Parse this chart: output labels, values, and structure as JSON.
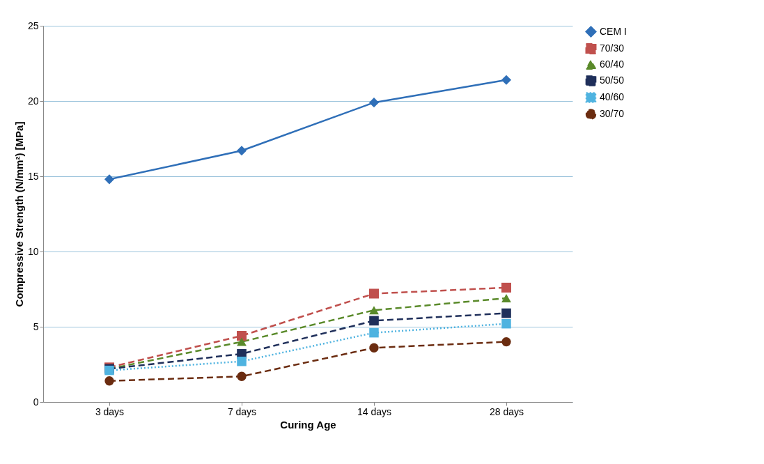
{
  "chart_data": {
    "type": "line",
    "xlabel": "Curing Age",
    "ylabel": "Compressive Strength (N/mm²) [MPa]",
    "categories": [
      "3 days",
      "7 days",
      "14 days",
      "28 days"
    ],
    "series": [
      {
        "name": "CEM I",
        "color": "#2f6fb8",
        "marker": "diamond",
        "line_style": "solid",
        "values": [
          14.8,
          16.7,
          19.9,
          21.4
        ]
      },
      {
        "name": "70/30",
        "color": "#c0504d",
        "marker": "square",
        "line_style": "dashed",
        "values": [
          2.3,
          4.4,
          7.2,
          7.6
        ]
      },
      {
        "name": "60/40",
        "color": "#5a8a2a",
        "marker": "triangle",
        "line_style": "dashed",
        "values": [
          2.2,
          4.0,
          6.1,
          6.9
        ]
      },
      {
        "name": "50/50",
        "color": "#1f2f5a",
        "marker": "square",
        "line_style": "dashed",
        "values": [
          2.2,
          3.2,
          5.4,
          5.9
        ]
      },
      {
        "name": "40/60",
        "color": "#4fb3e0",
        "marker": "square",
        "line_style": "dotted",
        "values": [
          2.1,
          2.7,
          4.6,
          5.2
        ]
      },
      {
        "name": "30/70",
        "color": "#6b2c10",
        "marker": "circle",
        "line_style": "dashed",
        "values": [
          1.4,
          1.7,
          3.6,
          4.0
        ]
      }
    ],
    "ylim": [
      0,
      25
    ],
    "yticks": [
      0,
      5,
      10,
      15,
      20,
      25
    ],
    "grid": "y",
    "legend": "right"
  }
}
